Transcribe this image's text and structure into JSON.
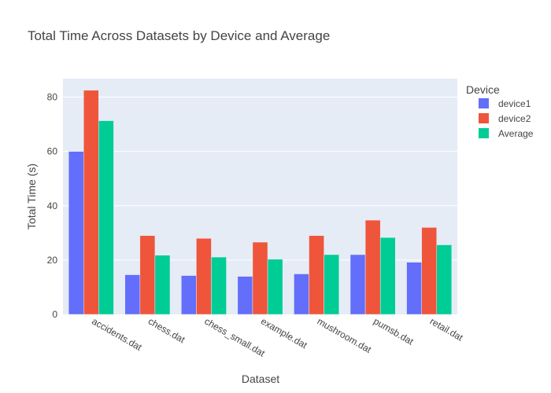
{
  "chart_data": {
    "type": "bar",
    "title": "Total Time Across Datasets by Device and Average",
    "xlabel": "Dataset",
    "ylabel": "Total Time (s)",
    "categories": [
      "accidents.dat",
      "chess.dat",
      "chess_small.dat",
      "example.dat",
      "mushroom.dat",
      "pumsb.dat",
      "retail.dat"
    ],
    "series": [
      {
        "name": "device1",
        "color": "#636efa",
        "values": [
          60.0,
          14.6,
          14.3,
          14.0,
          14.9,
          22.0,
          19.2
        ]
      },
      {
        "name": "device2",
        "color": "#ef553b",
        "values": [
          82.5,
          29.0,
          28.0,
          26.6,
          29.0,
          34.7,
          32.0
        ]
      },
      {
        "name": "Average",
        "color": "#00cc96",
        "values": [
          71.3,
          21.8,
          21.1,
          20.3,
          22.0,
          28.3,
          25.6
        ]
      }
    ],
    "ylim": [
      0,
      86.8
    ],
    "yticks": [
      0,
      20,
      40,
      60,
      80
    ],
    "legend": {
      "title": "Device",
      "position": "top-right"
    },
    "grid": true,
    "plot_bg": "#e5ecf6"
  }
}
